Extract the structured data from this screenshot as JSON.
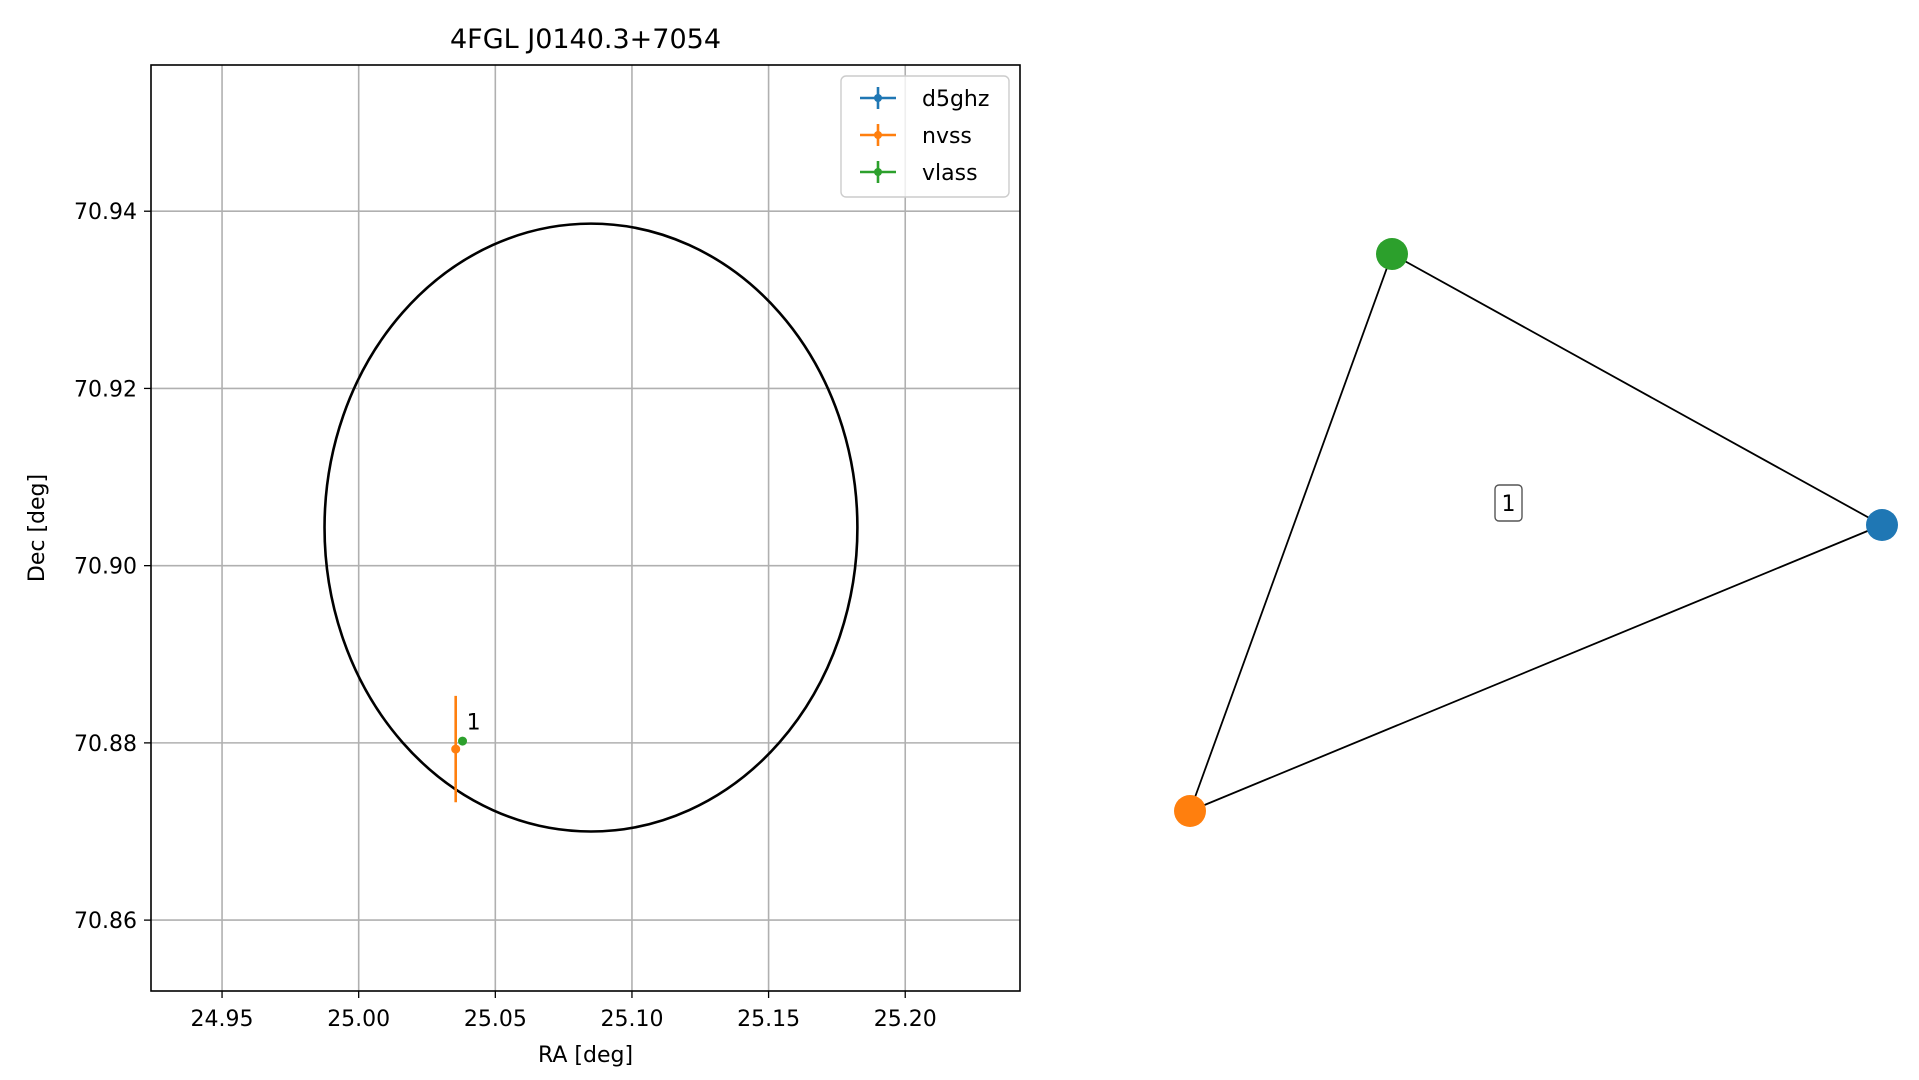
{
  "chart_data": [
    {
      "type": "scatter",
      "title": "4FGL J0140.3+7054",
      "xlabel": "RA [deg]",
      "ylabel": "Dec [deg]",
      "xlim": [
        24.924,
        25.242
      ],
      "ylim": [
        70.852,
        70.9565
      ],
      "xticks": [
        24.95,
        25.0,
        25.05,
        25.1,
        25.15,
        25.2
      ],
      "xtick_labels": [
        "24.95",
        "25.00",
        "25.05",
        "25.10",
        "25.15",
        "25.20"
      ],
      "yticks": [
        70.86,
        70.88,
        70.9,
        70.92,
        70.94
      ],
      "ytick_labels": [
        "70.86",
        "70.88",
        "70.90",
        "70.92",
        "70.94"
      ],
      "grid": true,
      "legend_position": "upper right",
      "ellipse": {
        "ra_center": 25.085,
        "dec_center": 70.9043,
        "ra_half_width": 0.0975,
        "dec_half_height": 0.0343,
        "color": "#000000"
      },
      "series": [
        {
          "name": "d5ghz",
          "color": "#1f77b4",
          "points": []
        },
        {
          "name": "nvss",
          "color": "#ff7f0e",
          "points": [
            {
              "ra": 25.0355,
              "dec": 70.8793,
              "dec_err": 0.006
            }
          ]
        },
        {
          "name": "vlass",
          "color": "#2ca02c",
          "points": [
            {
              "ra": 25.038,
              "dec": 70.8802,
              "dec_err": 0.0003
            }
          ]
        }
      ],
      "annotations": [
        {
          "text": "1",
          "ra": 25.0395,
          "dec": 70.8815
        }
      ]
    },
    {
      "type": "network",
      "nodes": [
        {
          "name": "d5ghz",
          "color": "#1f77b4"
        },
        {
          "name": "nvss",
          "color": "#ff7f0e"
        },
        {
          "name": "vlass",
          "color": "#2ca02c"
        }
      ],
      "edges": [
        [
          "vlass",
          "d5ghz"
        ],
        [
          "vlass",
          "nvss"
        ],
        [
          "nvss",
          "d5ghz"
        ]
      ],
      "label": "1"
    }
  ]
}
